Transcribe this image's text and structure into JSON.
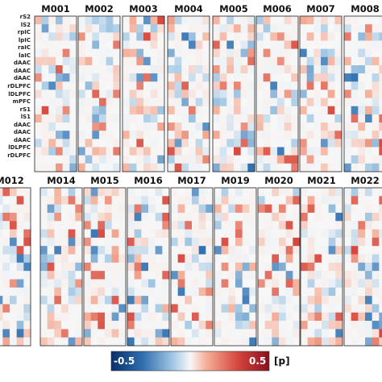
{
  "chart_data": {
    "type": "heatmap",
    "row_labels": [
      "rS2",
      "lS2",
      "rpIC",
      "lpIC",
      "raIC",
      "laIC",
      "dAAC",
      "dAAC",
      "dAAC",
      "rDLPFC",
      "lDLPFC",
      "mPFC",
      "rS1",
      "lS1",
      "dAAC",
      "dAAC",
      "dAAC",
      "lDLPFC",
      "rDLPFC"
    ],
    "panel_titles_row1": [
      "M001",
      "M002",
      "M003",
      "M004",
      "M005",
      "M006",
      "M007",
      "M008"
    ],
    "panel_titles_row2": [
      "M012",
      "M014",
      "M015",
      "M016",
      "M017",
      "M019",
      "M020",
      "M021",
      "M022"
    ],
    "colorbar": {
      "min": -0.5,
      "max": 0.5,
      "min_label": "-0.5",
      "max_label": "0.5",
      "unit_label": "[p]",
      "color_negative": "#08306b",
      "color_mid": "#f7f7f7",
      "color_positive": "#8b0f1f"
    },
    "cells_per_panel": {
      "columns": 6,
      "rows": 19
    }
  }
}
